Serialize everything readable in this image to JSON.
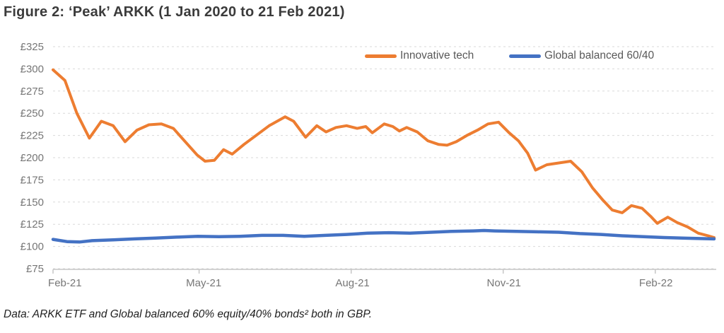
{
  "figure": {
    "title": "Figure 2: ‘Peak’ ARKK (1 Jan 2020 to 21 Feb 2021)",
    "footnote": "Data: ARKK ETF and Global balanced 60% equity/40% bonds² both in GBP."
  },
  "chart_data": {
    "type": "line",
    "title": "Figure 2: ‘Peak’ ARKK (1 Jan 2020 to 21 Feb 2021)",
    "currency": "GBP",
    "ylabel_prefix": "£",
    "ylim": [
      75,
      325
    ],
    "y_ticks": [
      325,
      300,
      275,
      250,
      225,
      200,
      175,
      150,
      125,
      100,
      75
    ],
    "x_labels": [
      "Feb-21",
      "May-21",
      "Aug-21",
      "Nov-21",
      "Feb-22"
    ],
    "x_tick_pct": [
      0,
      22.1,
      45.1,
      68.1,
      91.1
    ],
    "x_label_pct": [
      1.8,
      22.8,
      45.3,
      68.2,
      91.2
    ],
    "grid": "horizontal-dashed",
    "legend_position": "top-inside",
    "axis_color": "#c6c6c6",
    "grid_color": "#d9d9d9",
    "series": [
      {
        "id": "innovative-tech",
        "name": "Innovative tech",
        "color": "#ED7D31",
        "width": 4,
        "points": [
          [
            0,
            299
          ],
          [
            1.8,
            287
          ],
          [
            3.6,
            250
          ],
          [
            5.5,
            222
          ],
          [
            7.3,
            241
          ],
          [
            9.1,
            236
          ],
          [
            10.9,
            218
          ],
          [
            12.7,
            231
          ],
          [
            14.5,
            237
          ],
          [
            16.4,
            238
          ],
          [
            18.2,
            233
          ],
          [
            20,
            218
          ],
          [
            21.8,
            203
          ],
          [
            23,
            196
          ],
          [
            24.4,
            197
          ],
          [
            25.8,
            209
          ],
          [
            27.1,
            204
          ],
          [
            28.9,
            215
          ],
          [
            30.9,
            226
          ],
          [
            32.7,
            236
          ],
          [
            35.1,
            246
          ],
          [
            36.4,
            241
          ],
          [
            38.2,
            223
          ],
          [
            39.9,
            236
          ],
          [
            41.3,
            229
          ],
          [
            42.8,
            234
          ],
          [
            44.4,
            236
          ],
          [
            46,
            233
          ],
          [
            47.3,
            235
          ],
          [
            48.3,
            228
          ],
          [
            50.1,
            238
          ],
          [
            51.4,
            235
          ],
          [
            52.4,
            230
          ],
          [
            53.5,
            234
          ],
          [
            55.1,
            229
          ],
          [
            56.7,
            219
          ],
          [
            58.3,
            215
          ],
          [
            59.6,
            214
          ],
          [
            61,
            218
          ],
          [
            62.6,
            225
          ],
          [
            64.2,
            231
          ],
          [
            65.8,
            238
          ],
          [
            67.4,
            240
          ],
          [
            69,
            228
          ],
          [
            70.4,
            219
          ],
          [
            71.8,
            205
          ],
          [
            73,
            186
          ],
          [
            74.7,
            192
          ],
          [
            76.5,
            194
          ],
          [
            78.3,
            196
          ],
          [
            80,
            184
          ],
          [
            81.6,
            166
          ],
          [
            83.2,
            152
          ],
          [
            84.6,
            141
          ],
          [
            86.1,
            138
          ],
          [
            87.5,
            146
          ],
          [
            89.1,
            143
          ],
          [
            90.4,
            134
          ],
          [
            91.4,
            126
          ],
          [
            93,
            133
          ],
          [
            94.4,
            127
          ],
          [
            96,
            122
          ],
          [
            97.6,
            115
          ],
          [
            99.1,
            112
          ],
          [
            100,
            110
          ]
        ]
      },
      {
        "id": "global-balanced-60-40",
        "name": "Global balanced 60/40",
        "color": "#4472C4",
        "width": 4.5,
        "points": [
          [
            0,
            108
          ],
          [
            2.1,
            105.5
          ],
          [
            4,
            105
          ],
          [
            5.9,
            106.5
          ],
          [
            9.1,
            107.5
          ],
          [
            12.3,
            108.5
          ],
          [
            15.5,
            109.5
          ],
          [
            18.7,
            110.5
          ],
          [
            21.9,
            111.5
          ],
          [
            25.1,
            111
          ],
          [
            28.3,
            111.5
          ],
          [
            31.6,
            112.5
          ],
          [
            34.8,
            112.5
          ],
          [
            38,
            111.5
          ],
          [
            41.2,
            112.5
          ],
          [
            44.4,
            113.5
          ],
          [
            47.6,
            115
          ],
          [
            50.8,
            115.5
          ],
          [
            54,
            115
          ],
          [
            57.2,
            116
          ],
          [
            60.4,
            117
          ],
          [
            63.6,
            117.5
          ],
          [
            65.2,
            118
          ],
          [
            66.8,
            117.5
          ],
          [
            70.1,
            117
          ],
          [
            73.3,
            116.5
          ],
          [
            76.5,
            116
          ],
          [
            79.7,
            114.5
          ],
          [
            82.9,
            113.5
          ],
          [
            86.1,
            112
          ],
          [
            89.3,
            111
          ],
          [
            92.5,
            110
          ],
          [
            95.7,
            109.3
          ],
          [
            100,
            108.5
          ]
        ]
      }
    ]
  }
}
